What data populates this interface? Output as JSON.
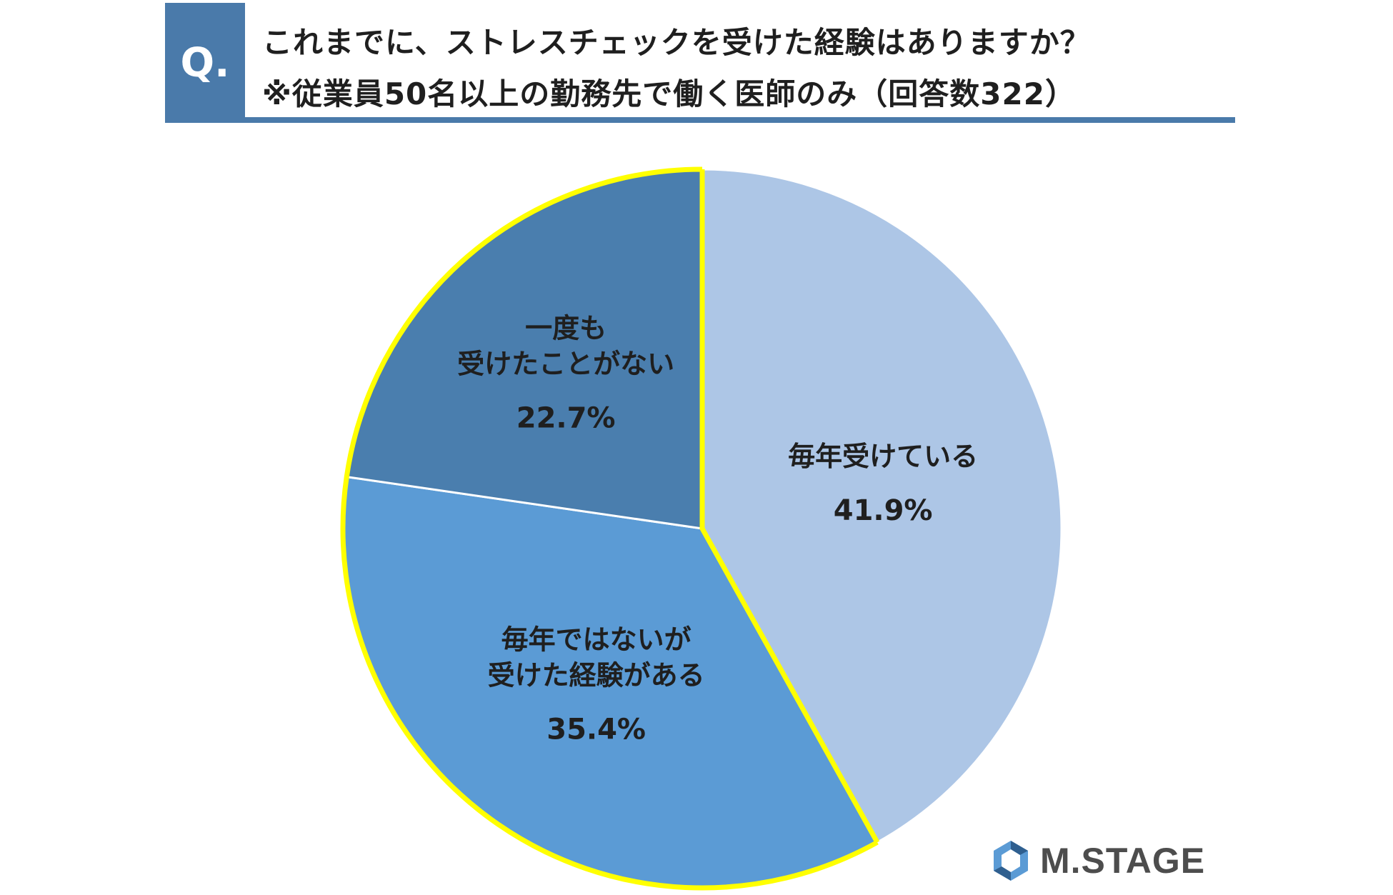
{
  "header": {
    "badge": "Q.",
    "title_line1": "これまでに、ストレスチェックを受けた経験はありますか？",
    "title_line2": "※従業員50名以上の勤務先で働く医師のみ（回答数322）"
  },
  "chart_data": {
    "type": "pie",
    "unit": "%",
    "slices": [
      {
        "label_lines": [
          "毎年受けている"
        ],
        "value": 41.9,
        "pct_label": "41.9%",
        "color": "#adc6e6"
      },
      {
        "label_lines": [
          "毎年ではないが",
          "受けた経験がある"
        ],
        "value": 35.4,
        "pct_label": "35.4%",
        "color": "#5b9bd5"
      },
      {
        "label_lines": [
          "一度も",
          "受けたことがない"
        ],
        "value": 22.7,
        "pct_label": "22.7%",
        "color": "#4a7eae"
      }
    ],
    "outline_color": "#ffff00"
  },
  "logo": {
    "text": "M.STAGE",
    "mark_icon": "hexagon-logo-icon",
    "color": "#4d4d4d",
    "accent": "#5b9bd5"
  }
}
